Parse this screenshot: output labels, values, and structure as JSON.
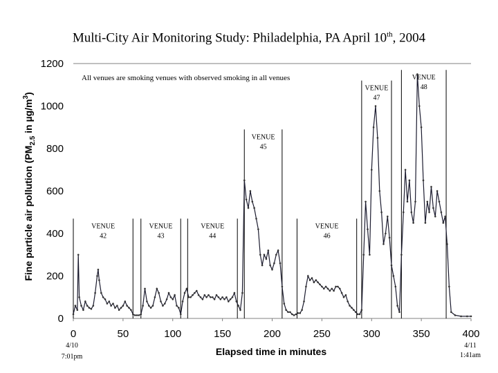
{
  "title": {
    "main": "Multi-City Air Monitoring Study: Philadelphia, PA April 10",
    "sup": "th",
    "tail": ", 2004"
  },
  "note": "All venues are smoking venues with observed smoking in all venues",
  "start_stamp": {
    "date": "4/10",
    "time": "7:01pm"
  },
  "end_stamp": {
    "date": "4/11",
    "time": "1:41am"
  },
  "colors": {
    "line": "#1a1a2e",
    "marker": "#333333",
    "divider": "#000000"
  },
  "chart_data": {
    "type": "line",
    "xlabel": "Elapsed time in minutes",
    "ylabel": "Fine particle air pollution (PM 2.5 in µg/m3)",
    "ylabel_parts": {
      "a": "Fine particle air pollution (PM",
      "sub": "2.5",
      "b": " in µg/m",
      "sup": "3",
      "c": ")"
    },
    "xlim": [
      0,
      400
    ],
    "ylim": [
      0,
      1200
    ],
    "x_ticks": [
      0,
      50,
      100,
      150,
      200,
      250,
      300,
      350,
      400
    ],
    "y_ticks": [
      0,
      200,
      400,
      600,
      800,
      1000,
      1200
    ],
    "grid": false,
    "venues": [
      {
        "label": "VENUE",
        "num": "42",
        "start": 0,
        "end": 60,
        "top": 470
      },
      {
        "label": "VENUE",
        "num": "43",
        "start": 68,
        "end": 108,
        "top": 470
      },
      {
        "label": "VENUE",
        "num": "44",
        "start": 115,
        "end": 165,
        "top": 470
      },
      {
        "label": "VENUE",
        "num": "45",
        "start": 172,
        "end": 210,
        "top": 890
      },
      {
        "label": "VENUE",
        "num": "46",
        "start": 225,
        "end": 285,
        "top": 470
      },
      {
        "label": "VENUE",
        "num": "47",
        "start": 290,
        "end": 320,
        "top": 1120
      },
      {
        "label": "VENUE",
        "num": "48",
        "start": 330,
        "end": 375,
        "top": 1170
      }
    ],
    "series": [
      {
        "points": [
          [
            0,
            20
          ],
          [
            2,
            60
          ],
          [
            4,
            40
          ],
          [
            5,
            300
          ],
          [
            6,
            100
          ],
          [
            8,
            60
          ],
          [
            10,
            40
          ],
          [
            12,
            80
          ],
          [
            14,
            60
          ],
          [
            16,
            50
          ],
          [
            18,
            45
          ],
          [
            20,
            60
          ],
          [
            22,
            120
          ],
          [
            24,
            200
          ],
          [
            25,
            230
          ],
          [
            26,
            180
          ],
          [
            28,
            120
          ],
          [
            30,
            100
          ],
          [
            32,
            90
          ],
          [
            34,
            70
          ],
          [
            36,
            80
          ],
          [
            38,
            60
          ],
          [
            40,
            70
          ],
          [
            42,
            50
          ],
          [
            44,
            60
          ],
          [
            46,
            40
          ],
          [
            48,
            50
          ],
          [
            50,
            60
          ],
          [
            52,
            80
          ],
          [
            54,
            60
          ],
          [
            56,
            50
          ],
          [
            58,
            40
          ],
          [
            60,
            20
          ],
          [
            62,
            15
          ],
          [
            64,
            15
          ],
          [
            66,
            15
          ],
          [
            68,
            20
          ],
          [
            70,
            60
          ],
          [
            72,
            140
          ],
          [
            74,
            80
          ],
          [
            76,
            60
          ],
          [
            78,
            50
          ],
          [
            80,
            60
          ],
          [
            82,
            100
          ],
          [
            84,
            140
          ],
          [
            86,
            120
          ],
          [
            88,
            80
          ],
          [
            90,
            60
          ],
          [
            92,
            70
          ],
          [
            94,
            90
          ],
          [
            96,
            120
          ],
          [
            98,
            100
          ],
          [
            100,
            90
          ],
          [
            102,
            110
          ],
          [
            104,
            60
          ],
          [
            106,
            50
          ],
          [
            108,
            20
          ],
          [
            110,
            80
          ],
          [
            112,
            120
          ],
          [
            114,
            140
          ],
          [
            116,
            100
          ],
          [
            118,
            100
          ],
          [
            120,
            110
          ],
          [
            122,
            120
          ],
          [
            124,
            130
          ],
          [
            126,
            110
          ],
          [
            128,
            100
          ],
          [
            130,
            90
          ],
          [
            132,
            110
          ],
          [
            134,
            100
          ],
          [
            136,
            110
          ],
          [
            138,
            100
          ],
          [
            140,
            100
          ],
          [
            142,
            90
          ],
          [
            144,
            110
          ],
          [
            146,
            100
          ],
          [
            148,
            90
          ],
          [
            150,
            100
          ],
          [
            152,
            90
          ],
          [
            154,
            100
          ],
          [
            156,
            80
          ],
          [
            158,
            90
          ],
          [
            160,
            100
          ],
          [
            162,
            120
          ],
          [
            164,
            80
          ],
          [
            166,
            60
          ],
          [
            168,
            40
          ],
          [
            170,
            120
          ],
          [
            172,
            650
          ],
          [
            174,
            560
          ],
          [
            176,
            520
          ],
          [
            178,
            600
          ],
          [
            180,
            550
          ],
          [
            182,
            520
          ],
          [
            184,
            470
          ],
          [
            186,
            420
          ],
          [
            188,
            300
          ],
          [
            190,
            250
          ],
          [
            192,
            300
          ],
          [
            194,
            280
          ],
          [
            196,
            320
          ],
          [
            198,
            250
          ],
          [
            200,
            230
          ],
          [
            202,
            260
          ],
          [
            204,
            300
          ],
          [
            206,
            320
          ],
          [
            208,
            260
          ],
          [
            210,
            150
          ],
          [
            212,
            70
          ],
          [
            214,
            40
          ],
          [
            216,
            30
          ],
          [
            218,
            30
          ],
          [
            220,
            20
          ],
          [
            222,
            15
          ],
          [
            224,
            20
          ],
          [
            226,
            25
          ],
          [
            228,
            25
          ],
          [
            230,
            40
          ],
          [
            232,
            80
          ],
          [
            234,
            150
          ],
          [
            236,
            200
          ],
          [
            238,
            180
          ],
          [
            240,
            190
          ],
          [
            242,
            170
          ],
          [
            244,
            180
          ],
          [
            246,
            170
          ],
          [
            248,
            160
          ],
          [
            250,
            150
          ],
          [
            252,
            140
          ],
          [
            254,
            150
          ],
          [
            256,
            140
          ],
          [
            258,
            130
          ],
          [
            260,
            140
          ],
          [
            262,
            130
          ],
          [
            264,
            150
          ],
          [
            266,
            150
          ],
          [
            268,
            140
          ],
          [
            270,
            120
          ],
          [
            272,
            100
          ],
          [
            274,
            110
          ],
          [
            276,
            80
          ],
          [
            278,
            60
          ],
          [
            280,
            50
          ],
          [
            282,
            40
          ],
          [
            284,
            30
          ],
          [
            286,
            20
          ],
          [
            288,
            20
          ],
          [
            290,
            40
          ],
          [
            292,
            300
          ],
          [
            294,
            550
          ],
          [
            296,
            420
          ],
          [
            298,
            300
          ],
          [
            300,
            700
          ],
          [
            302,
            900
          ],
          [
            304,
            1000
          ],
          [
            306,
            850
          ],
          [
            308,
            600
          ],
          [
            310,
            500
          ],
          [
            312,
            350
          ],
          [
            314,
            400
          ],
          [
            316,
            480
          ],
          [
            318,
            380
          ],
          [
            320,
            250
          ],
          [
            322,
            200
          ],
          [
            324,
            150
          ],
          [
            326,
            60
          ],
          [
            328,
            30
          ],
          [
            330,
            300
          ],
          [
            332,
            500
          ],
          [
            334,
            700
          ],
          [
            336,
            550
          ],
          [
            338,
            650
          ],
          [
            340,
            500
          ],
          [
            342,
            450
          ],
          [
            344,
            550
          ],
          [
            346,
            1150
          ],
          [
            348,
            1000
          ],
          [
            350,
            900
          ],
          [
            352,
            650
          ],
          [
            354,
            450
          ],
          [
            356,
            550
          ],
          [
            358,
            500
          ],
          [
            360,
            620
          ],
          [
            362,
            520
          ],
          [
            364,
            480
          ],
          [
            366,
            600
          ],
          [
            368,
            550
          ],
          [
            370,
            500
          ],
          [
            372,
            450
          ],
          [
            374,
            480
          ],
          [
            376,
            350
          ],
          [
            378,
            150
          ],
          [
            380,
            30
          ],
          [
            384,
            15
          ],
          [
            390,
            10
          ],
          [
            396,
            10
          ],
          [
            400,
            10
          ]
        ]
      }
    ]
  }
}
